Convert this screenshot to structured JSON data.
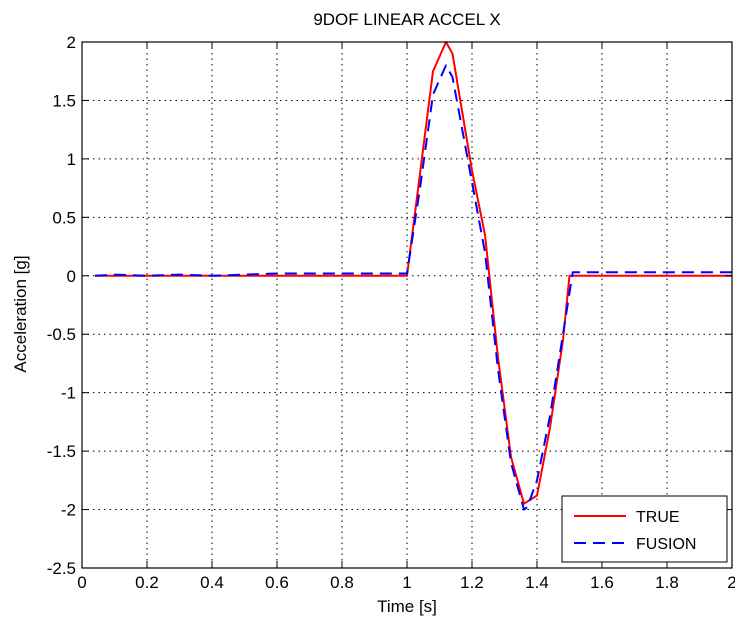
{
  "chart_data": {
    "type": "line",
    "title": "9DOF LINEAR ACCEL X",
    "xlabel": "Time [s]",
    "ylabel": "Acceleration [g]",
    "xlim": [
      0,
      2
    ],
    "ylim": [
      -2.5,
      2
    ],
    "grid": true,
    "legend_position": "bottom-right",
    "x_ticks": [
      0,
      0.2,
      0.4,
      0.6,
      0.8,
      1,
      1.2,
      1.4,
      1.6,
      1.8,
      2
    ],
    "x_tick_labels": [
      "0",
      "0.2",
      "0.4",
      "0.6",
      "0.8",
      "1",
      "1.2",
      "1.4",
      "1.6",
      "1.8",
      "2"
    ],
    "y_ticks": [
      -2.5,
      -2,
      -1.5,
      -1,
      -0.5,
      0,
      0.5,
      1,
      1.5,
      2
    ],
    "y_tick_labels": [
      "-2.5",
      "-2",
      "-1.5",
      "-1",
      "-0.5",
      "0",
      "0.5",
      "1",
      "1.5",
      "2"
    ],
    "series": [
      {
        "name": "TRUE",
        "color": "#ff0000",
        "style": "solid",
        "x": [
          0.04,
          1.0,
          1.08,
          1.12,
          1.14,
          1.2,
          1.24,
          1.28,
          1.32,
          1.36,
          1.4,
          1.44,
          1.48,
          1.5,
          2.0
        ],
        "y": [
          0.0,
          0.0,
          1.75,
          2.0,
          1.9,
          0.9,
          0.35,
          -0.7,
          -1.55,
          -1.95,
          -1.88,
          -1.3,
          -0.55,
          0.0,
          0.0
        ]
      },
      {
        "name": "FUSION",
        "color": "#0000ff",
        "style": "dashed",
        "x": [
          0.04,
          0.1,
          0.2,
          0.3,
          0.4,
          0.6,
          0.8,
          1.0,
          1.04,
          1.08,
          1.12,
          1.14,
          1.2,
          1.24,
          1.28,
          1.32,
          1.36,
          1.37,
          1.4,
          1.44,
          1.48,
          1.51,
          1.6,
          2.0
        ],
        "y": [
          0.0,
          0.01,
          0.0,
          0.01,
          0.0,
          0.02,
          0.02,
          0.02,
          0.75,
          1.55,
          1.8,
          1.7,
          0.8,
          0.2,
          -0.8,
          -1.6,
          -2.0,
          -1.98,
          -1.75,
          -1.2,
          -0.5,
          0.03,
          0.03,
          0.03
        ]
      }
    ]
  }
}
